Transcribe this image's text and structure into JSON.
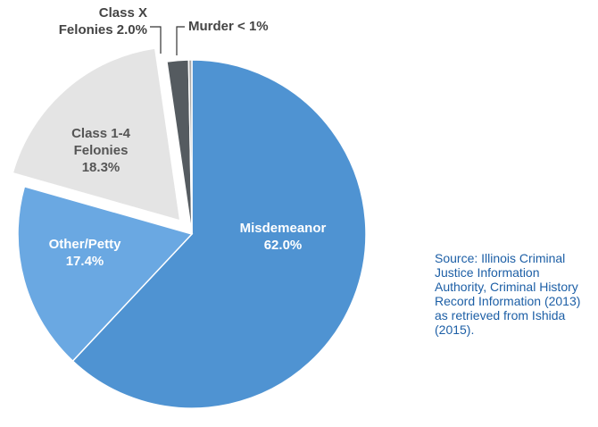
{
  "chart_data": {
    "type": "pie",
    "categories": [
      "Misdemeanor",
      "Other/Petty",
      "Class 1-4 Felonies",
      "Class X Felonies",
      "Murder"
    ],
    "values": [
      62.0,
      17.4,
      18.3,
      2.0,
      0.3
    ],
    "value_labels": [
      "62.0%",
      "17.4%",
      "18.3%",
      "2.0%",
      "< 1%"
    ],
    "colors": [
      "#4f93d2",
      "#6aa8e2",
      "#e4e4e4",
      "#555b60",
      "#ababab"
    ],
    "explode": [
      false,
      false,
      true,
      false,
      false
    ],
    "source": "Source: Illinois Criminal Justice Information Authority, Criminal History Record Information (2013) as retrieved from Ishida (2015)."
  }
}
